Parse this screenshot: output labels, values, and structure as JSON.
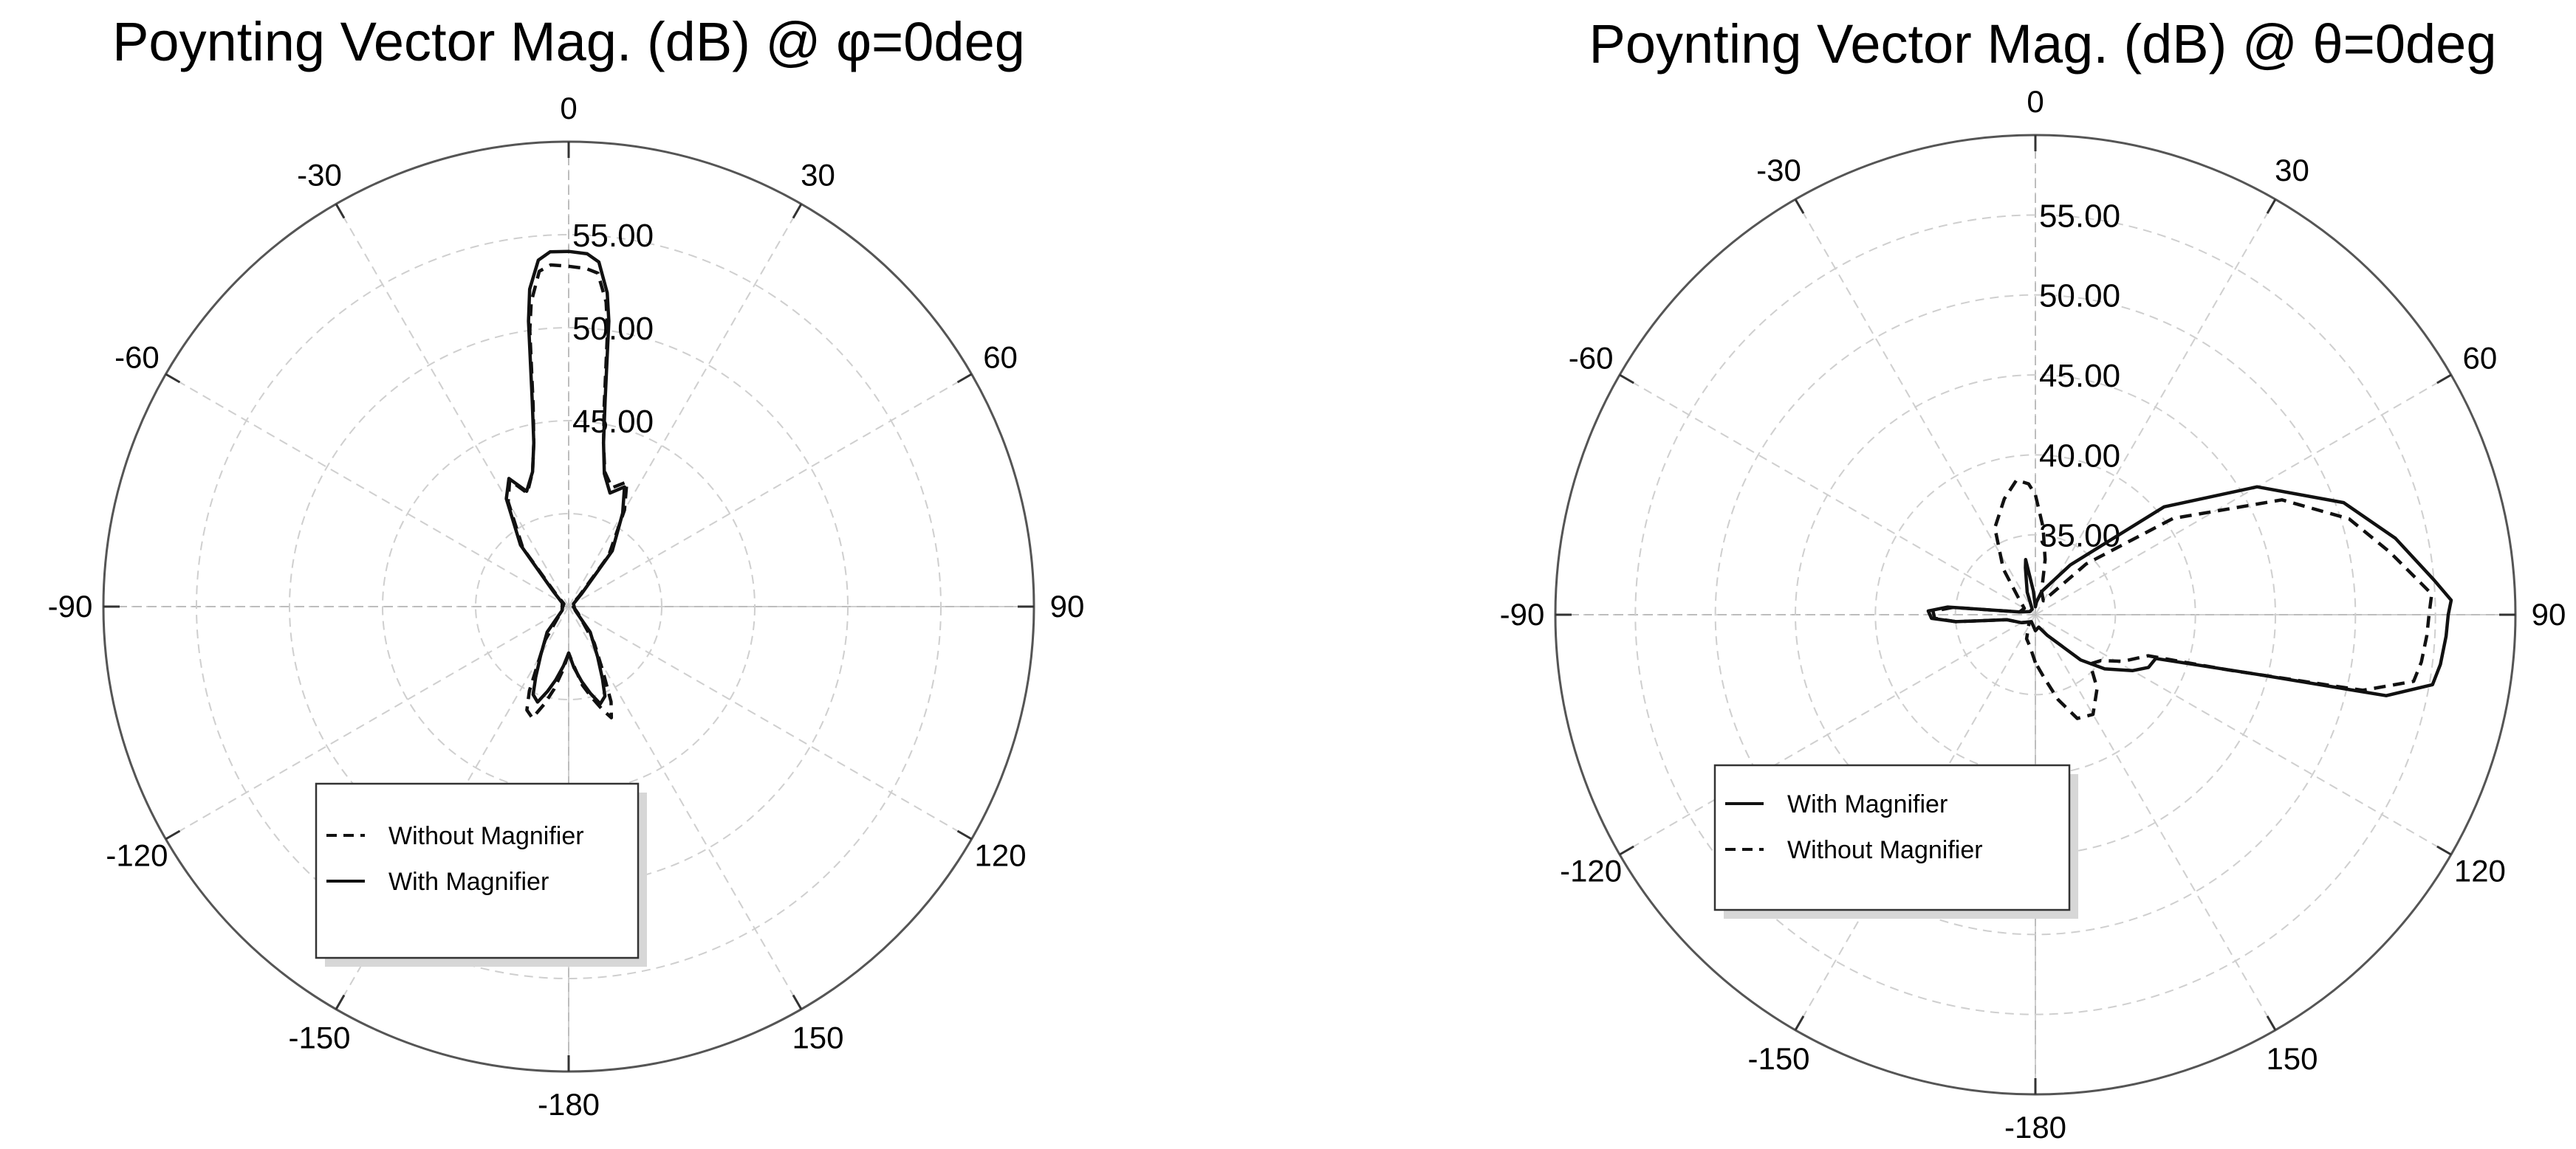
{
  "chart_data": [
    {
      "type": "polar-line",
      "title": "Poynting Vector Mag. (dB) @ φ=0deg",
      "theta_unit": "deg",
      "angle_ticks": [
        0,
        30,
        60,
        90,
        120,
        150,
        -180,
        -150,
        -120,
        -90,
        -60,
        -30
      ],
      "r_scale": {
        "min": 35,
        "max": 60
      },
      "r_labels": [
        {
          "value": 55,
          "text": "55.00"
        },
        {
          "value": 50,
          "text": "50.00"
        },
        {
          "value": 45,
          "text": "45.00"
        }
      ],
      "grid_rings": [
        40,
        45,
        50,
        55
      ],
      "grid": true,
      "legend": {
        "position": "bottom-center",
        "entries": [
          {
            "label": "Without Magnifier",
            "style": "dashed"
          },
          {
            "label": "With Magnifier",
            "style": "solid"
          }
        ]
      },
      "series": [
        {
          "name": "Without Magnifier",
          "style": "dashed",
          "points": [
            [
              -180,
              37.5
            ],
            [
              -175,
              38.4
            ],
            [
              -170,
              39.5
            ],
            [
              -166,
              40.4
            ],
            [
              -162,
              41.3
            ],
            [
              -158,
              41.0
            ],
            [
              -155,
              40.0
            ],
            [
              -152,
              38.6
            ],
            [
              -145,
              37.2
            ],
            [
              -125,
              35.5
            ],
            [
              -60,
              35.3
            ],
            [
              -45,
              36.0
            ],
            [
              -38,
              39.0
            ],
            [
              -30,
              41.5
            ],
            [
              -25,
              42.5
            ],
            [
              -20,
              41.5
            ],
            [
              -15,
              42.5
            ],
            [
              -12,
              44.0
            ],
            [
              -10,
              46.0
            ],
            [
              -8,
              50.0
            ],
            [
              -7,
              51.5
            ],
            [
              -5,
              53.1
            ],
            [
              -3,
              53.4
            ],
            [
              0,
              53.3
            ],
            [
              3,
              53.2
            ],
            [
              5,
              53.0
            ],
            [
              7,
              51.5
            ],
            [
              8,
              50.0
            ],
            [
              10,
              46.0
            ],
            [
              12,
              44.0
            ],
            [
              15,
              42.5
            ],
            [
              20,
              41.8
            ],
            [
              25,
              42.4
            ],
            [
              30,
              41.0
            ],
            [
              38,
              38.5
            ],
            [
              45,
              35.8
            ],
            [
              60,
              35.2
            ],
            [
              125,
              35.6
            ],
            [
              145,
              37.4
            ],
            [
              152,
              38.9
            ],
            [
              156,
              40.6
            ],
            [
              159,
              41.4
            ],
            [
              162,
              40.8
            ],
            [
              166,
              40.0
            ],
            [
              170,
              39.3
            ],
            [
              175,
              38.2
            ],
            [
              180,
              37.5
            ]
          ]
        },
        {
          "name": "With Magnifier",
          "style": "solid",
          "points": [
            [
              -180,
              37.5
            ],
            [
              -175,
              38.2
            ],
            [
              -170,
              39.0
            ],
            [
              -166,
              39.7
            ],
            [
              -162,
              40.4
            ],
            [
              -158,
              40.1
            ],
            [
              -155,
              39.2
            ],
            [
              -150,
              38.0
            ],
            [
              -140,
              36.8
            ],
            [
              -120,
              35.4
            ],
            [
              -60,
              35.4
            ],
            [
              -45,
              36.2
            ],
            [
              -38,
              39.2
            ],
            [
              -30,
              41.7
            ],
            [
              -25,
              42.6
            ],
            [
              -20,
              41.6
            ],
            [
              -15,
              42.5
            ],
            [
              -12,
              44.0
            ],
            [
              -10,
              46.3
            ],
            [
              -8,
              50.5
            ],
            [
              -7,
              52.2
            ],
            [
              -5,
              53.7
            ],
            [
              -3,
              54.1
            ],
            [
              0,
              54.1
            ],
            [
              3,
              54.0
            ],
            [
              5,
              53.6
            ],
            [
              7,
              52.0
            ],
            [
              8,
              50.5
            ],
            [
              10,
              46.3
            ],
            [
              12,
              44.0
            ],
            [
              15,
              42.4
            ],
            [
              20,
              41.5
            ],
            [
              25,
              42.1
            ],
            [
              30,
              40.8
            ],
            [
              38,
              38.8
            ],
            [
              45,
              36.0
            ],
            [
              60,
              35.3
            ],
            [
              120,
              35.4
            ],
            [
              140,
              36.8
            ],
            [
              150,
              38.1
            ],
            [
              155,
              39.3
            ],
            [
              158,
              40.2
            ],
            [
              162,
              40.5
            ],
            [
              166,
              39.8
            ],
            [
              170,
              39.1
            ],
            [
              175,
              38.3
            ],
            [
              180,
              37.5
            ]
          ]
        }
      ]
    },
    {
      "type": "polar-line",
      "title": "Poynting Vector Mag. (dB) @ θ=0deg",
      "theta_unit": "deg",
      "angle_ticks": [
        0,
        30,
        60,
        90,
        120,
        150,
        -180,
        -150,
        -120,
        -90,
        -60,
        -30
      ],
      "r_scale": {
        "min": 30,
        "max": 60
      },
      "r_labels": [
        {
          "value": 55,
          "text": "55.00"
        },
        {
          "value": 50,
          "text": "50.00"
        },
        {
          "value": 45,
          "text": "45.00"
        },
        {
          "value": 40,
          "text": "40.00"
        },
        {
          "value": 35,
          "text": "35.00"
        }
      ],
      "grid_rings": [
        35,
        40,
        45,
        50,
        55
      ],
      "grid": true,
      "legend": {
        "position": "bottom-center",
        "entries": [
          {
            "label": "With Magnifier",
            "style": "solid"
          },
          {
            "label": "Without Magnifier",
            "style": "dashed"
          }
        ]
      },
      "series": [
        {
          "name": "With Magnifier",
          "style": "solid",
          "points": [
            [
              -180,
              31.0
            ],
            [
              -150,
              30.5
            ],
            [
              -120,
              31.0
            ],
            [
              -100,
              31.8
            ],
            [
              -95,
              35.0
            ],
            [
              -92,
              36.5
            ],
            [
              -88,
              36.7
            ],
            [
              -85,
              35.5
            ],
            [
              -80,
              31.0
            ],
            [
              -60,
              30.4
            ],
            [
              -30,
              30.4
            ],
            [
              -20,
              31.5
            ],
            [
              -12,
              33.0
            ],
            [
              -10,
              33.5
            ],
            [
              -5,
              31.5
            ],
            [
              0,
              30.5
            ],
            [
              5,
              30.8
            ],
            [
              15,
              31.5
            ],
            [
              35,
              33.8
            ],
            [
              50,
              40.5
            ],
            [
              60,
              46.0
            ],
            [
              70,
              50.5
            ],
            [
              78,
              53.0
            ],
            [
              85,
              55.0
            ],
            [
              88,
              56.0
            ],
            [
              90,
              55.8
            ],
            [
              93,
              55.7
            ],
            [
              97,
              55.5
            ],
            [
              100,
              55.2
            ],
            [
              103,
              52.5
            ],
            [
              105,
              44.5
            ],
            [
              110,
              38.0
            ],
            [
              115,
              37.8
            ],
            [
              120,
              37.0
            ],
            [
              128,
              35.5
            ],
            [
              135,
              34.0
            ],
            [
              150,
              31.5
            ],
            [
              165,
              30.8
            ],
            [
              180,
              31.0
            ]
          ]
        },
        {
          "name": "Without Magnifier",
          "style": "dashed",
          "points": [
            [
              -180,
              33.0
            ],
            [
              -170,
              32.0
            ],
            [
              -160,
              31.6
            ],
            [
              -140,
              30.6
            ],
            [
              -120,
              31.0
            ],
            [
              -100,
              31.8
            ],
            [
              -95,
              35.0
            ],
            [
              -92,
              36.3
            ],
            [
              -88,
              36.4
            ],
            [
              -85,
              35.2
            ],
            [
              -80,
              31.0
            ],
            [
              -60,
              30.8
            ],
            [
              -45,
              31.5
            ],
            [
              -35,
              33.5
            ],
            [
              -25,
              36.0
            ],
            [
              -15,
              37.5
            ],
            [
              -8,
              38.5
            ],
            [
              -3,
              38.2
            ],
            [
              0,
              37.5
            ],
            [
              5,
              35.5
            ],
            [
              10,
              33.5
            ],
            [
              15,
              31.5
            ],
            [
              30,
              31.0
            ],
            [
              45,
              34.5
            ],
            [
              55,
              40.5
            ],
            [
              65,
              47.0
            ],
            [
              73,
              50.5
            ],
            [
              80,
              52.5
            ],
            [
              87,
              54.8
            ],
            [
              90,
              54.6
            ],
            [
              93,
              54.5
            ],
            [
              97,
              54.3
            ],
            [
              100,
              54.0
            ],
            [
              103,
              51.0
            ],
            [
              106,
              42.5
            ],
            [
              110,
              37.5
            ],
            [
              118,
              36.2
            ],
            [
              125,
              35.0
            ],
            [
              132,
              34.6
            ],
            [
              140,
              36.0
            ],
            [
              150,
              37.2
            ],
            [
              158,
              37.0
            ],
            [
              165,
              35.5
            ],
            [
              172,
              34.0
            ],
            [
              180,
              33.0
            ]
          ]
        }
      ]
    }
  ]
}
